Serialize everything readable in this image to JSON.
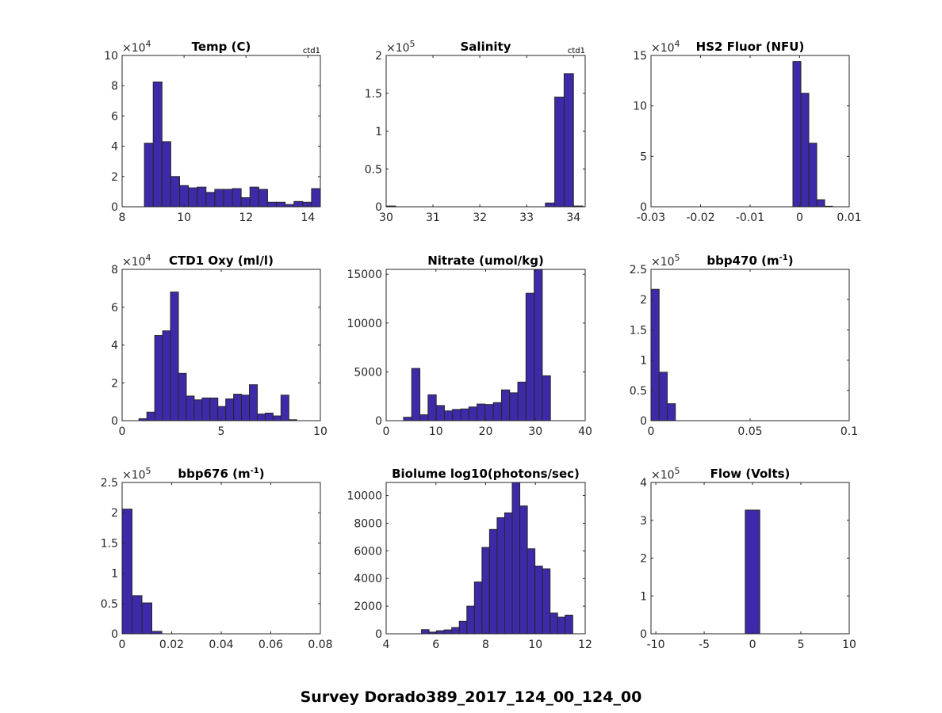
{
  "figure": {
    "suptitle": "Survey Dorado389_2017_124_00_124_00",
    "bar_color": "#3d2aa8",
    "edge_color": "#262626"
  },
  "chart_data": [
    {
      "type": "bar",
      "title": "Temp (C)",
      "corner_label": "ctd1",
      "exponent_label": "×10",
      "exponent": "4",
      "xlim": [
        8,
        14.4
      ],
      "ylim": [
        0,
        10
      ],
      "xticks": [
        8,
        10,
        12,
        14
      ],
      "xtick_labels": [
        "8",
        "10",
        "12",
        "14"
      ],
      "yticks": [
        0,
        2,
        4,
        6,
        8,
        10
      ],
      "ytick_labels": [
        "0",
        "2",
        "4",
        "6",
        "8",
        "10"
      ],
      "bin_start": 8.72,
      "bin_width": 0.284,
      "values": [
        4.2,
        8.25,
        4.3,
        2.0,
        1.4,
        1.25,
        1.3,
        0.95,
        1.15,
        1.15,
        1.2,
        0.6,
        1.3,
        1.15,
        0.3,
        0.3,
        0.15,
        0.35,
        0.3,
        1.2
      ],
      "value_scale": "x10^4"
    },
    {
      "type": "bar",
      "title": "Salinity",
      "corner_label": "ctd1",
      "exponent_label": "×10",
      "exponent": "5",
      "xlim": [
        30,
        34.25
      ],
      "ylim": [
        0,
        2
      ],
      "xticks": [
        30,
        31,
        32,
        33,
        34
      ],
      "xtick_labels": [
        "30",
        "31",
        "32",
        "33",
        "34"
      ],
      "yticks": [
        0,
        0.5,
        1,
        1.5,
        2
      ],
      "ytick_labels": [
        "0",
        "0.5",
        "1",
        "1.5",
        "2"
      ],
      "bin_start": 30.0,
      "bin_width": 0.2,
      "values": [
        0.01,
        0,
        0,
        0,
        0,
        0,
        0,
        0,
        0,
        0,
        0,
        0,
        0,
        0,
        0,
        0,
        0,
        0.05,
        1.45,
        1.76,
        0.01
      ],
      "value_scale": "x10^5"
    },
    {
      "type": "bar",
      "title": "HS2 Fluor (NFU)",
      "corner_label": "",
      "exponent_label": "×10",
      "exponent": "4",
      "xlim": [
        -0.03,
        0.01
      ],
      "ylim": [
        0,
        15
      ],
      "xticks": [
        -0.03,
        -0.02,
        -0.01,
        0,
        0.01
      ],
      "xtick_labels": [
        "-0.03",
        "-0.02",
        "-0.01",
        "0",
        "0.01"
      ],
      "yticks": [
        0,
        5,
        10,
        15
      ],
      "ytick_labels": [
        "0",
        "5",
        "10",
        "15"
      ],
      "bin_start": -0.00136,
      "bin_width": 0.0016,
      "values": [
        14.4,
        11.25,
        6.3,
        0.7,
        0.05
      ],
      "value_scale": "x10^4"
    },
    {
      "type": "bar",
      "title": "CTD1 Oxy (ml/l)",
      "corner_label": "",
      "exponent_label": "×10",
      "exponent": "4",
      "xlim": [
        0,
        10
      ],
      "ylim": [
        0,
        8
      ],
      "xticks": [
        0,
        5,
        10
      ],
      "xtick_labels": [
        "0",
        "5",
        "10"
      ],
      "yticks": [
        0,
        2,
        4,
        6,
        8
      ],
      "ytick_labels": [
        "0",
        "2",
        "4",
        "6",
        "8"
      ],
      "bin_start": 0.85,
      "bin_width": 0.398,
      "values": [
        0.1,
        0.45,
        4.5,
        4.75,
        6.8,
        2.5,
        1.3,
        1.1,
        1.2,
        1.2,
        0.75,
        1.15,
        1.4,
        1.35,
        1.9,
        0.35,
        0.4,
        0.25,
        1.35,
        0.05
      ],
      "value_scale": "x10^4"
    },
    {
      "type": "bar",
      "title": "Nitrate (umol/kg)",
      "corner_label": "",
      "exponent_label": "",
      "exponent": "",
      "xlim": [
        0,
        40
      ],
      "ylim": [
        0,
        15500
      ],
      "xticks": [
        0,
        10,
        20,
        30,
        40
      ],
      "xtick_labels": [
        "0",
        "10",
        "20",
        "30",
        "40"
      ],
      "yticks": [
        0,
        5000,
        10000,
        15000
      ],
      "ytick_labels": [
        "0",
        "5000",
        "10000",
        "15000"
      ],
      "bin_start": 3.5,
      "bin_width": 1.64,
      "values": [
        350,
        5350,
        600,
        2650,
        1550,
        1000,
        1150,
        1200,
        1400,
        1700,
        1650,
        1850,
        3150,
        2850,
        3950,
        13050,
        15500,
        4600
      ],
      "value_scale": "x1"
    },
    {
      "type": "bar",
      "title": "bbp470 (m",
      "title_sup": "-1",
      "title_suffix": ")",
      "corner_label": "",
      "exponent_label": "×10",
      "exponent": "5",
      "xlim": [
        0,
        0.1
      ],
      "ylim": [
        0,
        2.5
      ],
      "xticks": [
        0,
        0.05,
        0.1
      ],
      "xtick_labels": [
        "0",
        "0.05",
        "0.1"
      ],
      "yticks": [
        0,
        0.5,
        1,
        1.5,
        2,
        2.5
      ],
      "ytick_labels": [
        "0",
        "0.5",
        "1",
        "1.5",
        "2",
        "2.5"
      ],
      "bin_start": 0,
      "bin_width": 0.0041,
      "values": [
        2.17,
        0.8,
        0.28
      ],
      "value_scale": "x10^5"
    },
    {
      "type": "bar",
      "title": "bbp676 (m",
      "title_sup": "-1",
      "title_suffix": ")",
      "corner_label": "",
      "exponent_label": "×10",
      "exponent": "5",
      "xlim": [
        0,
        0.08
      ],
      "ylim": [
        0,
        2.5
      ],
      "xticks": [
        0,
        0.02,
        0.04,
        0.06,
        0.08
      ],
      "xtick_labels": [
        "0",
        "0.02",
        "0.04",
        "0.06",
        "0.08"
      ],
      "yticks": [
        0,
        0.5,
        1,
        1.5,
        2,
        2.5
      ],
      "ytick_labels": [
        "0",
        "0.5",
        "1",
        "1.5",
        "2",
        "2.5"
      ],
      "bin_start": 0,
      "bin_width": 0.004,
      "values": [
        2.06,
        0.63,
        0.51,
        0.04
      ],
      "value_scale": "x10^5"
    },
    {
      "type": "bar",
      "title": "Biolume log10(photons/sec)",
      "corner_label": "",
      "exponent_label": "",
      "exponent": "",
      "xlim": [
        4,
        12
      ],
      "ylim": [
        0,
        10950
      ],
      "xticks": [
        4,
        6,
        8,
        10,
        12
      ],
      "xtick_labels": [
        "4",
        "6",
        "8",
        "10",
        "12"
      ],
      "yticks": [
        0,
        2000,
        4000,
        6000,
        8000,
        10000
      ],
      "ytick_labels": [
        "0",
        "2000",
        "4000",
        "6000",
        "8000",
        "10000"
      ],
      "bin_start": 5.42,
      "bin_width": 0.304,
      "values": [
        300,
        120,
        220,
        280,
        450,
        900,
        2000,
        3750,
        6250,
        7550,
        8400,
        8750,
        10950,
        9250,
        6150,
        4900,
        4700,
        1500,
        1200,
        1350
      ],
      "value_scale": "x1"
    },
    {
      "type": "bar",
      "title": "Flow (Volts)",
      "corner_label": "",
      "exponent_label": "×10",
      "exponent": "5",
      "xlim": [
        -10.5,
        10
      ],
      "ylim": [
        0,
        4
      ],
      "xticks": [
        -10,
        -5,
        0,
        5,
        10
      ],
      "xtick_labels": [
        "-10",
        "-5",
        "0",
        "5",
        "10"
      ],
      "yticks": [
        0,
        1,
        2,
        3,
        4
      ],
      "ytick_labels": [
        "0",
        "1",
        "2",
        "3",
        "4"
      ],
      "bin_start": -0.75,
      "bin_width": 1.5,
      "values": [
        3.27
      ],
      "value_scale": "x10^5"
    }
  ]
}
